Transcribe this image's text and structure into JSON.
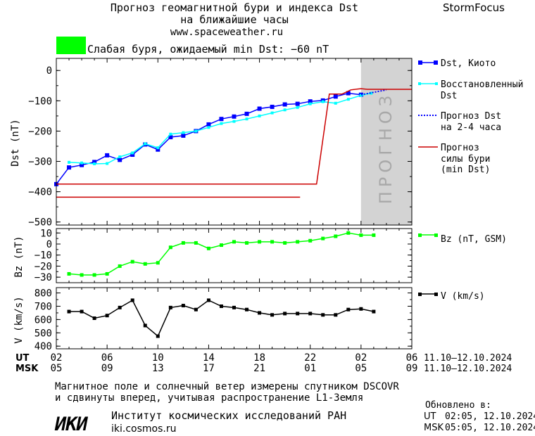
{
  "header": {
    "title_line1": "Прогноз геомагнитной бури и индекса Dst",
    "title_line2": "на ближайшие часы",
    "site": "www.spaceweather.ru",
    "brand": "StormFocus"
  },
  "storm_status": {
    "text": "Слабая буря, ожидаемый min Dst: −60 nT",
    "color": "#00ff00"
  },
  "forecast_label": "ПРОГНОЗ",
  "legend": {
    "dst_kyoto": "Dst, Киото",
    "restored_1": "Восстановленный",
    "restored_2": "Dst",
    "fc_dst_1": "Прогноз Dst",
    "fc_dst_2": "на 2-4 часа",
    "fc_storm_1": "Прогноз",
    "fc_storm_2": "силы бури",
    "fc_storm_3": "(min Dst)",
    "bz": "Bz (nT, GSM)",
    "v": "V (km/s)"
  },
  "time_axis": {
    "ut_label": "UT",
    "msk_label": "MSK",
    "ut_ticks": [
      "02",
      "06",
      "10",
      "14",
      "18",
      "22",
      "02",
      "06"
    ],
    "msk_ticks": [
      "05",
      "09",
      "13",
      "17",
      "21",
      "01",
      "05",
      "09"
    ],
    "date_range_ut": "11.10–12.10.2024",
    "date_range_msk": "11.10–12.10.2024"
  },
  "footer": {
    "note_line1": "Магнитное поле и солнечный ветер измерены спутником DSCOVR",
    "note_line2": "и сдвинуты вперед, учитывая распространение L1-Земля",
    "logo": "ИКИ",
    "institute": "Институт космических исследований РАН",
    "site": "iki.cosmos.ru",
    "updated_label": "Обновлено в:",
    "updated_ut_label": "UT",
    "updated_ut": "02:05, 12.10.2024",
    "updated_msk_label": "MSK",
    "updated_msk": "05:05, 12.10.2024"
  },
  "colors": {
    "dst_kyoto": "#0000ff",
    "restored": "#00ffff",
    "forecast_dst": "#0000ff",
    "storm_forecast": "#cc0000",
    "bz": "#00ff00",
    "v": "#000000",
    "forecast_zone": "#d3d3d3"
  },
  "chart_data": [
    {
      "type": "line",
      "ylabel": "Dst (nT)",
      "xlabel": "UT",
      "x_unit": "hours since 02 UT 11.10.2024",
      "xlim": [
        0,
        28
      ],
      "ylim": [
        -510,
        40
      ],
      "yticks": [
        0,
        -100,
        -200,
        -300,
        -400,
        -500
      ],
      "forecast_zone_x": [
        24,
        28
      ],
      "series": [
        {
          "name": "Dst, Киото",
          "marker": "square",
          "x": [
            0,
            1,
            2,
            3,
            4,
            5,
            6,
            7,
            8,
            9,
            10,
            11,
            12,
            13,
            14,
            15,
            16,
            17,
            18,
            19,
            20,
            21,
            22,
            23,
            24
          ],
          "y": [
            -375,
            -320,
            -312,
            -302,
            -280,
            -295,
            -278,
            -244,
            -261,
            -220,
            -215,
            -200,
            -178,
            -160,
            -152,
            -143,
            -126,
            -120,
            -112,
            -110,
            -102,
            -99,
            -86,
            -75,
            -80
          ]
        },
        {
          "name": "Восстановленный Dst",
          "marker": "small-square",
          "x": [
            1,
            2,
            3,
            4,
            5,
            6,
            7,
            8,
            9,
            10,
            11,
            12,
            13,
            14,
            15,
            16,
            17,
            18,
            19,
            20,
            21,
            22,
            23,
            24,
            24.8
          ],
          "y": [
            -303,
            -305,
            -308,
            -307,
            -285,
            -272,
            -242,
            -255,
            -210,
            -205,
            -200,
            -188,
            -175,
            -168,
            -160,
            -150,
            -140,
            -130,
            -122,
            -110,
            -103,
            -108,
            -95,
            -82,
            -75
          ]
        },
        {
          "name": "Прогноз Dst на 2-4 часа",
          "style": "dotted",
          "x": [
            24,
            26
          ],
          "y": [
            -80,
            -64
          ]
        },
        {
          "name": "Прогноз силы бури (min Dst)",
          "style": "step",
          "x": [
            0,
            20.5,
            21.5,
            22.5,
            23.2,
            24,
            24.5,
            28
          ],
          "y": [
            -375,
            -375,
            -78,
            -78,
            -64,
            -60,
            -62,
            -62
          ]
        },
        {
          "name": "Прогноз силы бури (min Dst), ранее",
          "style": "step",
          "x": [
            0,
            19.2
          ],
          "y": [
            -418,
            -418
          ]
        }
      ]
    },
    {
      "type": "line",
      "ylabel": "Bz (nT)",
      "xlim": [
        0,
        28
      ],
      "ylim": [
        -35,
        14
      ],
      "yticks": [
        10,
        0,
        -10,
        -20,
        -30
      ],
      "series": [
        {
          "name": "Bz (nT, GSM)",
          "x": [
            1,
            2,
            3,
            4,
            5,
            6,
            7,
            8,
            9,
            10,
            11,
            12,
            13,
            14,
            15,
            16,
            17,
            18,
            19,
            20,
            21,
            22,
            23,
            24,
            25
          ],
          "y": [
            -27,
            -28,
            -28,
            -27,
            -20,
            -16,
            -18,
            -17,
            -3,
            1,
            1,
            -4,
            -1,
            2,
            1,
            2,
            2,
            1,
            2,
            3,
            5,
            7,
            10,
            8,
            8
          ]
        }
      ]
    },
    {
      "type": "line",
      "ylabel": "V (km/s)",
      "xlim": [
        0,
        28
      ],
      "ylim": [
        380,
        840
      ],
      "yticks": [
        800,
        700,
        600,
        500,
        400
      ],
      "series": [
        {
          "name": "V (km/s)",
          "x": [
            1,
            2,
            3,
            4,
            5,
            6,
            7,
            8,
            9,
            10,
            11,
            12,
            13,
            14,
            15,
            16,
            17,
            18,
            19,
            20,
            21,
            22,
            23,
            24,
            25
          ],
          "y": [
            660,
            660,
            610,
            630,
            690,
            745,
            555,
            475,
            690,
            705,
            675,
            745,
            700,
            690,
            675,
            650,
            635,
            645,
            645,
            645,
            635,
            635,
            675,
            680,
            660
          ]
        }
      ]
    }
  ]
}
